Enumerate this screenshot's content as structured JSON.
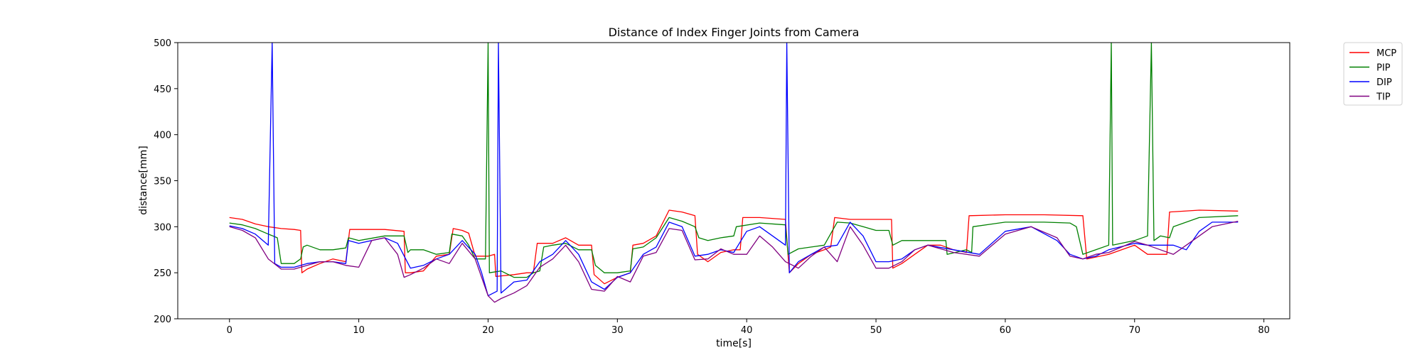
{
  "chart_data": {
    "type": "line",
    "title": "Distance of Index Finger Joints from Camera",
    "xlabel": "time[s]",
    "ylabel": "distance[mm]",
    "xlim": [
      -4,
      82
    ],
    "ylim": [
      200,
      500
    ],
    "x_ticks": [
      0,
      10,
      20,
      30,
      40,
      50,
      60,
      70,
      80
    ],
    "y_ticks": [
      200,
      250,
      300,
      350,
      400,
      450,
      500
    ],
    "grid": false,
    "legend_position": "outside-top-right",
    "series": [
      {
        "name": "MCP",
        "color": "#ff0000",
        "points": [
          [
            0,
            310
          ],
          [
            1,
            308
          ],
          [
            2,
            303
          ],
          [
            3,
            300
          ],
          [
            4,
            298
          ],
          [
            5,
            297
          ],
          [
            5.5,
            296
          ],
          [
            5.6,
            250
          ],
          [
            6,
            254
          ],
          [
            7,
            260
          ],
          [
            8,
            265
          ],
          [
            9,
            262
          ],
          [
            9.3,
            297
          ],
          [
            10,
            297
          ],
          [
            12,
            297
          ],
          [
            13.5,
            295
          ],
          [
            13.6,
            250
          ],
          [
            14,
            250
          ],
          [
            15,
            252
          ],
          [
            16,
            268
          ],
          [
            17,
            270
          ],
          [
            17.3,
            298
          ],
          [
            18,
            296
          ],
          [
            18.5,
            293
          ],
          [
            19,
            268
          ],
          [
            20,
            268
          ],
          [
            20.5,
            270
          ],
          [
            20.6,
            246
          ],
          [
            22,
            248
          ],
          [
            23,
            250
          ],
          [
            23.5,
            250
          ],
          [
            23.8,
            282
          ],
          [
            25,
            282
          ],
          [
            26,
            288
          ],
          [
            27,
            280
          ],
          [
            28,
            280
          ],
          [
            28.2,
            248
          ],
          [
            29,
            238
          ],
          [
            30,
            245
          ],
          [
            31,
            250
          ],
          [
            31.2,
            280
          ],
          [
            32,
            282
          ],
          [
            33,
            290
          ],
          [
            34,
            318
          ],
          [
            35,
            316
          ],
          [
            36,
            312
          ],
          [
            36.2,
            270
          ],
          [
            37,
            262
          ],
          [
            38,
            272
          ],
          [
            39,
            275
          ],
          [
            39.5,
            275
          ],
          [
            39.7,
            310
          ],
          [
            41,
            310
          ],
          [
            43,
            308
          ],
          [
            43.3,
            250
          ],
          [
            44,
            260
          ],
          [
            45,
            270
          ],
          [
            46,
            275
          ],
          [
            46.5,
            278
          ],
          [
            46.8,
            310
          ],
          [
            48,
            308
          ],
          [
            50,
            308
          ],
          [
            51.2,
            308
          ],
          [
            51.3,
            255
          ],
          [
            52,
            260
          ],
          [
            53,
            270
          ],
          [
            54,
            280
          ],
          [
            55,
            280
          ],
          [
            56,
            275
          ],
          [
            57,
            272
          ],
          [
            57.2,
            312
          ],
          [
            60,
            313
          ],
          [
            63,
            313
          ],
          [
            66,
            312
          ],
          [
            66.3,
            265
          ],
          [
            68,
            270
          ],
          [
            70,
            280
          ],
          [
            71,
            270
          ],
          [
            72,
            270
          ],
          [
            72.5,
            270
          ],
          [
            72.7,
            316
          ],
          [
            75,
            318
          ],
          [
            78,
            317
          ]
        ]
      },
      {
        "name": "PIP",
        "color": "#008000",
        "points": [
          [
            0,
            304
          ],
          [
            1,
            302
          ],
          [
            2,
            298
          ],
          [
            3,
            292
          ],
          [
            3.7,
            288
          ],
          [
            4,
            260
          ],
          [
            5,
            260
          ],
          [
            5.5,
            265
          ],
          [
            5.7,
            278
          ],
          [
            6,
            280
          ],
          [
            7,
            275
          ],
          [
            8,
            275
          ],
          [
            9,
            277
          ],
          [
            9.2,
            288
          ],
          [
            10,
            285
          ],
          [
            12,
            290
          ],
          [
            13.5,
            290
          ],
          [
            13.8,
            272
          ],
          [
            14,
            275
          ],
          [
            15,
            275
          ],
          [
            16,
            270
          ],
          [
            17,
            272
          ],
          [
            17.2,
            292
          ],
          [
            18,
            290
          ],
          [
            18.5,
            280
          ],
          [
            19,
            265
          ],
          [
            19.8,
            265
          ],
          [
            20,
            500
          ],
          [
            20.1,
            250
          ],
          [
            21,
            252
          ],
          [
            22,
            245
          ],
          [
            23,
            245
          ],
          [
            23.5,
            250
          ],
          [
            24,
            252
          ],
          [
            24.3,
            278
          ],
          [
            25,
            280
          ],
          [
            26,
            282
          ],
          [
            27,
            275
          ],
          [
            28,
            275
          ],
          [
            28.3,
            258
          ],
          [
            29,
            250
          ],
          [
            30,
            250
          ],
          [
            31,
            252
          ],
          [
            31.2,
            276
          ],
          [
            32,
            278
          ],
          [
            33,
            288
          ],
          [
            34,
            310
          ],
          [
            35,
            306
          ],
          [
            36,
            300
          ],
          [
            36.3,
            288
          ],
          [
            37,
            285
          ],
          [
            38,
            288
          ],
          [
            39,
            290
          ],
          [
            39.2,
            300
          ],
          [
            41,
            304
          ],
          [
            43,
            302
          ],
          [
            43.2,
            270
          ],
          [
            44,
            276
          ],
          [
            45,
            278
          ],
          [
            46,
            280
          ],
          [
            46.8,
            300
          ],
          [
            47,
            305
          ],
          [
            48,
            304
          ],
          [
            49,
            300
          ],
          [
            50,
            296
          ],
          [
            51,
            296
          ],
          [
            51.3,
            280
          ],
          [
            52,
            285
          ],
          [
            53,
            285
          ],
          [
            55,
            285
          ],
          [
            55.4,
            285
          ],
          [
            55.5,
            270
          ],
          [
            57,
            275
          ],
          [
            57.4,
            272
          ],
          [
            57.5,
            300
          ],
          [
            60,
            305
          ],
          [
            63,
            305
          ],
          [
            65,
            304
          ],
          [
            65.5,
            300
          ],
          [
            66,
            270
          ],
          [
            67,
            275
          ],
          [
            68,
            280
          ],
          [
            68.2,
            500
          ],
          [
            68.3,
            280
          ],
          [
            70,
            285
          ],
          [
            71,
            290
          ],
          [
            71.3,
            500
          ],
          [
            71.5,
            285
          ],
          [
            72,
            290
          ],
          [
            72.7,
            288
          ],
          [
            73,
            300
          ],
          [
            75,
            310
          ],
          [
            78,
            312
          ]
        ]
      },
      {
        "name": "DIP",
        "color": "#0000ff",
        "points": [
          [
            0,
            301
          ],
          [
            1,
            298
          ],
          [
            2,
            292
          ],
          [
            3,
            280
          ],
          [
            3.3,
            500
          ],
          [
            3.5,
            260
          ],
          [
            4,
            256
          ],
          [
            5,
            256
          ],
          [
            6,
            260
          ],
          [
            7,
            262
          ],
          [
            8,
            262
          ],
          [
            9,
            260
          ],
          [
            9.2,
            285
          ],
          [
            10,
            282
          ],
          [
            12,
            288
          ],
          [
            13,
            282
          ],
          [
            14,
            255
          ],
          [
            15,
            258
          ],
          [
            16,
            265
          ],
          [
            17,
            270
          ],
          [
            18,
            285
          ],
          [
            19,
            270
          ],
          [
            19.5,
            250
          ],
          [
            20,
            225
          ],
          [
            20.7,
            230
          ],
          [
            20.8,
            500
          ],
          [
            21,
            228
          ],
          [
            22,
            240
          ],
          [
            23,
            242
          ],
          [
            24,
            262
          ],
          [
            25,
            270
          ],
          [
            26,
            285
          ],
          [
            27,
            270
          ],
          [
            28,
            240
          ],
          [
            29,
            232
          ],
          [
            30,
            245
          ],
          [
            31,
            250
          ],
          [
            31.5,
            260
          ],
          [
            32,
            270
          ],
          [
            33,
            278
          ],
          [
            34,
            305
          ],
          [
            35,
            300
          ],
          [
            36,
            268
          ],
          [
            37,
            270
          ],
          [
            38,
            275
          ],
          [
            39,
            272
          ],
          [
            40,
            295
          ],
          [
            41,
            300
          ],
          [
            42,
            290
          ],
          [
            43,
            280
          ],
          [
            43.1,
            500
          ],
          [
            43.3,
            250
          ],
          [
            44,
            262
          ],
          [
            45,
            270
          ],
          [
            46,
            278
          ],
          [
            47,
            280
          ],
          [
            48,
            305
          ],
          [
            49,
            290
          ],
          [
            50,
            262
          ],
          [
            51,
            262
          ],
          [
            52,
            265
          ],
          [
            53,
            275
          ],
          [
            54,
            280
          ],
          [
            56,
            275
          ],
          [
            58,
            270
          ],
          [
            60,
            295
          ],
          [
            62,
            300
          ],
          [
            64,
            285
          ],
          [
            65,
            270
          ],
          [
            66,
            265
          ],
          [
            67,
            268
          ],
          [
            68,
            275
          ],
          [
            70,
            282
          ],
          [
            71,
            280
          ],
          [
            72,
            280
          ],
          [
            73,
            280
          ],
          [
            74,
            275
          ],
          [
            75,
            295
          ],
          [
            76,
            305
          ],
          [
            78,
            305
          ]
        ]
      },
      {
        "name": "TIP",
        "color": "#800080",
        "points": [
          [
            0,
            300
          ],
          [
            1,
            296
          ],
          [
            2,
            288
          ],
          [
            3,
            265
          ],
          [
            4,
            254
          ],
          [
            5,
            254
          ],
          [
            6,
            258
          ],
          [
            7,
            262
          ],
          [
            8,
            262
          ],
          [
            9,
            258
          ],
          [
            10,
            256
          ],
          [
            11,
            285
          ],
          [
            12,
            288
          ],
          [
            13,
            270
          ],
          [
            13.5,
            245
          ],
          [
            14,
            248
          ],
          [
            15,
            255
          ],
          [
            16,
            265
          ],
          [
            17,
            260
          ],
          [
            18,
            282
          ],
          [
            19,
            265
          ],
          [
            20,
            225
          ],
          [
            20.5,
            218
          ],
          [
            21,
            222
          ],
          [
            22,
            228
          ],
          [
            23,
            236
          ],
          [
            24,
            256
          ],
          [
            25,
            265
          ],
          [
            26,
            280
          ],
          [
            27,
            262
          ],
          [
            28,
            232
          ],
          [
            29,
            230
          ],
          [
            30,
            246
          ],
          [
            31,
            240
          ],
          [
            32,
            268
          ],
          [
            33,
            272
          ],
          [
            34,
            298
          ],
          [
            35,
            296
          ],
          [
            36,
            264
          ],
          [
            37,
            265
          ],
          [
            38,
            276
          ],
          [
            39,
            270
          ],
          [
            40,
            270
          ],
          [
            41,
            290
          ],
          [
            42,
            278
          ],
          [
            43,
            262
          ],
          [
            44,
            255
          ],
          [
            45,
            268
          ],
          [
            46,
            278
          ],
          [
            47,
            262
          ],
          [
            48,
            300
          ],
          [
            49,
            280
          ],
          [
            50,
            255
          ],
          [
            51,
            255
          ],
          [
            52,
            262
          ],
          [
            53,
            275
          ],
          [
            54,
            280
          ],
          [
            56,
            272
          ],
          [
            58,
            268
          ],
          [
            60,
            292
          ],
          [
            62,
            300
          ],
          [
            64,
            288
          ],
          [
            65,
            268
          ],
          [
            66,
            265
          ],
          [
            67,
            270
          ],
          [
            68,
            272
          ],
          [
            70,
            284
          ],
          [
            71,
            280
          ],
          [
            72,
            275
          ],
          [
            73,
            270
          ],
          [
            74,
            280
          ],
          [
            75,
            290
          ],
          [
            76,
            300
          ],
          [
            78,
            306
          ]
        ]
      }
    ]
  }
}
